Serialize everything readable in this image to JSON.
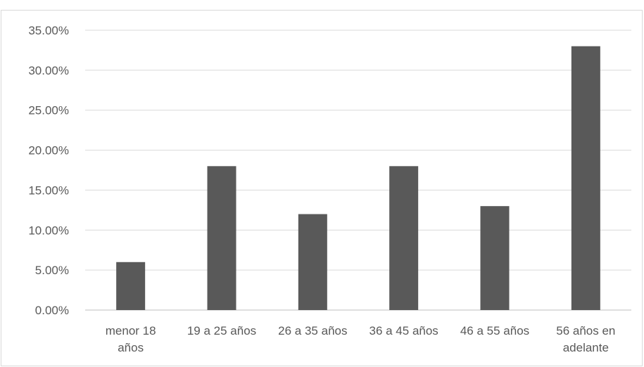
{
  "chart_data": {
    "type": "bar",
    "categories": [
      "menor 18 años",
      "19 a 25 años",
      "26 a 35 años",
      "36 a 45 años",
      "46 a 55 años",
      "56 años en adelante"
    ],
    "category_lines": [
      [
        "menor 18",
        "años"
      ],
      [
        "19 a 25 años"
      ],
      [
        "26 a 35 años"
      ],
      [
        "36 a 45 años"
      ],
      [
        "46 a 55 años"
      ],
      [
        "56 años en",
        "adelante"
      ]
    ],
    "values": [
      0.06,
      0.18,
      0.12,
      0.18,
      0.13,
      0.33
    ],
    "ylim": [
      0,
      0.35
    ],
    "yticks": [
      0.0,
      0.05,
      0.1,
      0.15,
      0.2,
      0.25,
      0.3,
      0.35
    ],
    "ytick_labels": [
      "0.00%",
      "5.00%",
      "10.00%",
      "15.00%",
      "20.00%",
      "25.00%",
      "30.00%",
      "35.00%"
    ],
    "title": "",
    "xlabel": "",
    "ylabel": "",
    "grid": true,
    "legend": "none",
    "colors": {
      "bar": "#595959",
      "grid": "#d9d9d9",
      "axis": "#bfbfbf",
      "text": "#595959"
    }
  }
}
